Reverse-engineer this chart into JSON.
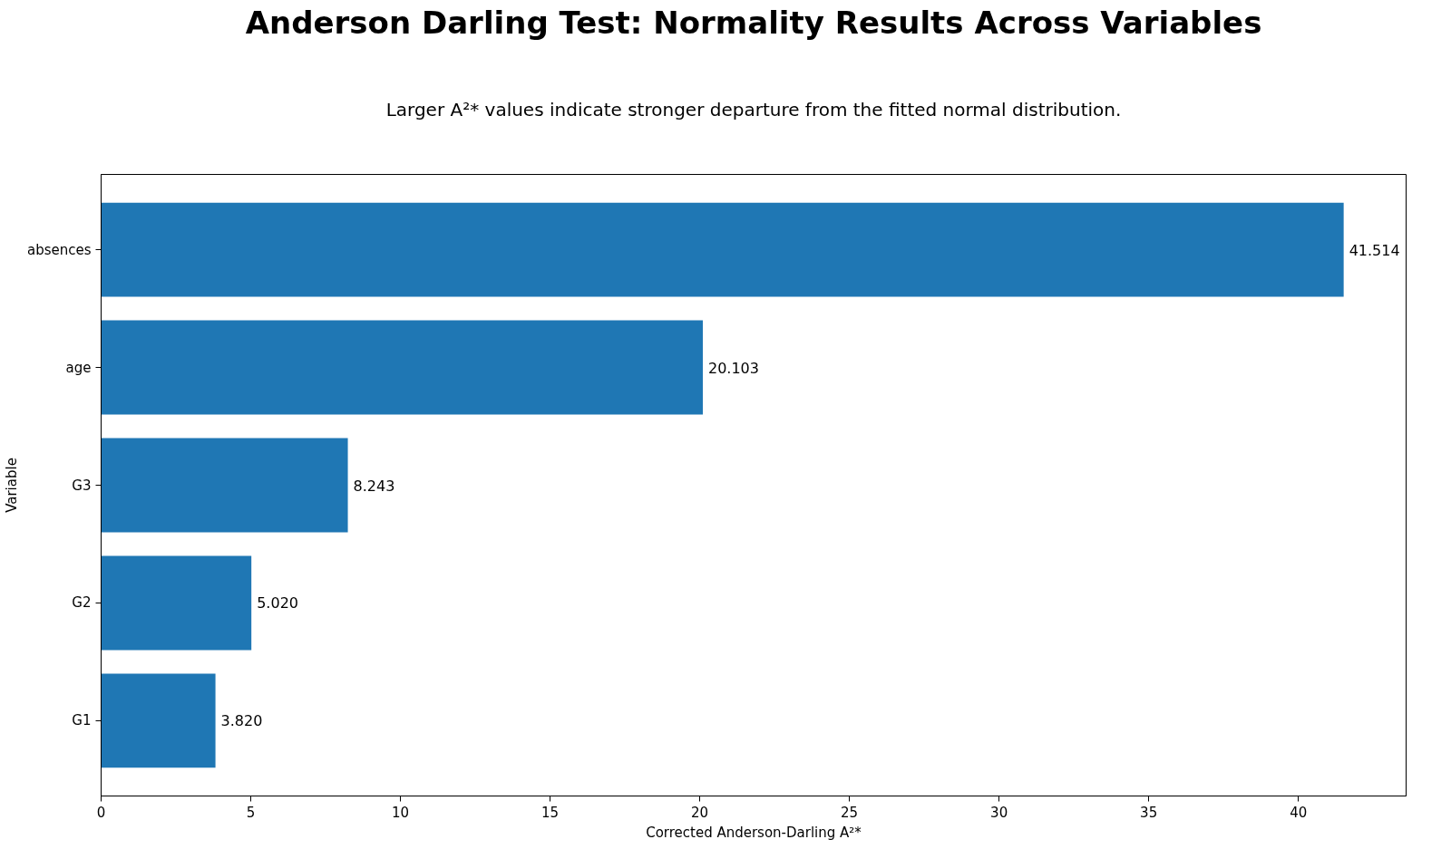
{
  "chart_data": {
    "type": "bar",
    "orientation": "horizontal",
    "title": "Anderson Darling Test: Normality Results Across Variables",
    "subtitle": "Larger A²* values indicate stronger departure from the fitted normal distribution.",
    "xlabel": "Corrected Anderson-Darling A²*",
    "ylabel": "Variable",
    "categories": [
      "absences",
      "age",
      "G3",
      "G2",
      "G1"
    ],
    "values": [
      41.514,
      20.103,
      8.243,
      5.02,
      3.82
    ],
    "value_labels": [
      "41.514",
      "20.103",
      "8.243",
      "5.020",
      "3.820"
    ],
    "color": "#1f77b4",
    "xlim": [
      0,
      43.6
    ],
    "xticks": [
      0,
      5,
      10,
      15,
      20,
      25,
      30,
      35,
      40
    ],
    "grid": false
  }
}
